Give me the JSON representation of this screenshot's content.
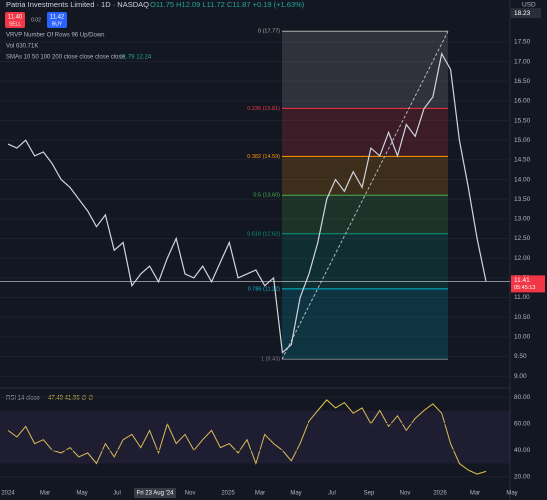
{
  "header": {
    "symbol": "Patria Investments Limited · 1D · NASDAQ",
    "ohlc": "O11.75 H12.09 L11.72 C11.87 +0.19 (+1.63%)",
    "sell_price": "11.40",
    "sell": "SELL",
    "spread": "0.02",
    "buy_price": "11.42",
    "buy": "BUY",
    "currency": "USD"
  },
  "indicators": {
    "vrvp": "VRVP Number Of Rows 96 Up/Down",
    "vol": "Vol 630.71K",
    "smas": "SMAs 10 50 100 200 close close close close",
    "sma_values": "11.79 12.24",
    "rsi": "RSI 14 close",
    "rsi_values": "47.49 41.96 ∅ ∅"
  },
  "chart_data": {
    "type": "line",
    "price_series": {
      "name": "Price",
      "color": "#d1d4dc",
      "values": [
        14.9,
        14.8,
        15.0,
        14.6,
        14.7,
        14.4,
        14.0,
        13.8,
        13.5,
        13.2,
        12.8,
        13.1,
        12.2,
        12.4,
        11.3,
        11.6,
        11.8,
        11.4,
        12.0,
        12.5,
        11.6,
        11.5,
        11.8,
        11.4,
        11.9,
        12.4,
        11.5,
        11.6,
        11.7,
        11.3,
        11.5,
        9.6,
        9.8,
        11.0,
        11.6,
        12.4,
        13.5,
        14.0,
        13.7,
        14.2,
        13.8,
        14.8,
        14.6,
        15.2,
        14.6,
        15.4,
        15.1,
        15.8,
        16.1,
        17.2,
        16.8,
        15.0,
        13.8,
        12.5,
        11.41
      ]
    },
    "ylim": [
      8.75,
      18.26
    ],
    "yticks": [
      {
        "value": 17.5,
        "label": "17.50"
      },
      {
        "value": 17,
        "label": "17.00"
      },
      {
        "value": 16.5,
        "label": "16.50"
      },
      {
        "value": 16,
        "label": "16.00"
      },
      {
        "value": 15.5,
        "label": "15.50"
      },
      {
        "value": 15,
        "label": "15.00"
      },
      {
        "value": 14.5,
        "label": "14.50"
      },
      {
        "value": 14,
        "label": "14.00"
      },
      {
        "value": 13.5,
        "label": "13.50"
      },
      {
        "value": 13,
        "label": "13.00"
      },
      {
        "value": 12.5,
        "label": "12.50"
      },
      {
        "value": 12,
        "label": "12.00"
      },
      {
        "value": 11.5,
        "label": "11.50"
      },
      {
        "value": 11,
        "label": "11.00"
      },
      {
        "value": 10.5,
        "label": "10.50"
      },
      {
        "value": 10,
        "label": "10.00"
      },
      {
        "value": 9.5,
        "label": "9.50"
      },
      {
        "value": 9,
        "label": "9.00"
      }
    ],
    "high_label": {
      "value": 18.23,
      "label": "18.23"
    },
    "last_price": {
      "value": 11.41,
      "label": "11.41",
      "countdown": "05:45:13"
    },
    "fib_levels": [
      {
        "value": 17.77,
        "label": "0 (17.77)",
        "color": "#b0b0b0"
      },
      {
        "value": 15.81,
        "label": "0.236 (15.81)",
        "color": "#f23645"
      },
      {
        "value": 14.59,
        "label": "0.382 (14.59)",
        "color": "#ff9800"
      },
      {
        "value": 13.6,
        "label": "0.5 (13.60)",
        "color": "#4caf50"
      },
      {
        "value": 12.62,
        "label": "0.618 (12.62)",
        "color": "#089981"
      },
      {
        "value": 11.22,
        "label": "0.786 (11.22)",
        "color": "#00bcd4"
      },
      {
        "value": 9.43,
        "label": "1 (9.43)",
        "color": "#787b86"
      }
    ],
    "rsi_series": {
      "name": "RSI",
      "color": "#e6c84a",
      "values": [
        55,
        50,
        58,
        45,
        48,
        40,
        38,
        42,
        35,
        38,
        30,
        45,
        35,
        48,
        52,
        42,
        55,
        38,
        60,
        45,
        52,
        40,
        48,
        55,
        42,
        45,
        38,
        48,
        30,
        52,
        45,
        40,
        32,
        45,
        62,
        70,
        78,
        72,
        76,
        68,
        72,
        60,
        70,
        58,
        66,
        55,
        64,
        70,
        75,
        68,
        45,
        30,
        25,
        22,
        24
      ]
    },
    "rsi_ylim": [
      13,
      84
    ],
    "rsi_yticks": [
      {
        "value": 80,
        "label": "80.00"
      },
      {
        "value": 60,
        "label": "60.00"
      },
      {
        "value": 40,
        "label": "40.00"
      },
      {
        "value": 20,
        "label": "20.00"
      }
    ],
    "time_labels": [
      "2024",
      "Mar",
      "May",
      "Jul",
      "Fri 23 Aug '24",
      "Nov",
      "2025",
      "Mar",
      "May",
      "Jul",
      "Sep",
      "Nov",
      "2026",
      "Mar",
      "May"
    ]
  }
}
